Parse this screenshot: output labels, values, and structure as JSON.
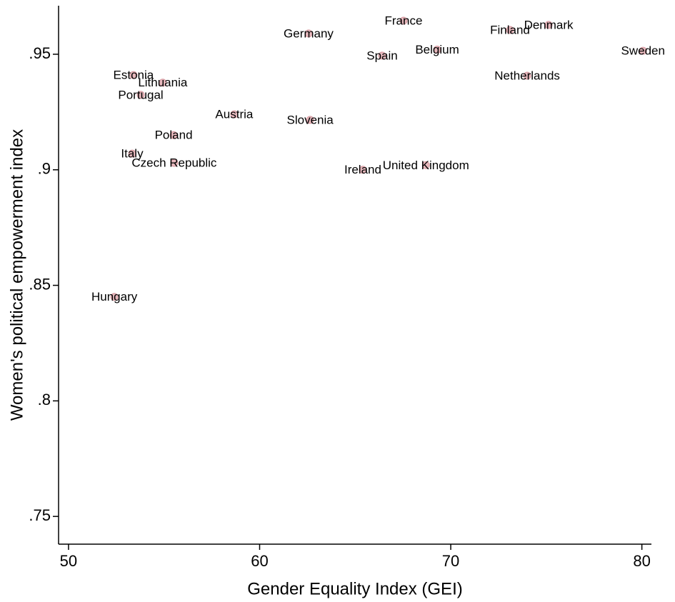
{
  "chart_data": {
    "type": "scatter",
    "x_label": "Gender Equality Index (GEI)",
    "y_label": "Women's political empowerment index",
    "xlim": [
      49.48,
      80.5
    ],
    "ylim": [
      0.738,
      0.971
    ],
    "xticks": [
      50,
      60,
      70,
      80
    ],
    "yticks": [
      {
        "value": 0.75,
        "label": ".75"
      },
      {
        "value": 0.8,
        "label": ".8"
      },
      {
        "value": 0.85,
        "label": ".85"
      },
      {
        "value": 0.9,
        "label": ".9"
      },
      {
        "value": 0.95,
        "label": ".95"
      }
    ],
    "color": "#e6b8bd",
    "labels": [
      "France",
      "Germany",
      "Denmark",
      "Finland",
      "Sweden",
      "Belgium",
      "Spain",
      "Netherlands",
      "Estonia",
      "Lithuania",
      "Portugal",
      "Austria",
      "Slovenia",
      "Poland",
      "Italy",
      "Czech Republic",
      "Ireland",
      "United Kingdom",
      "Hungary"
    ],
    "x": [
      67.53,
      62.56,
      75.12,
      73.1,
      80.06,
      69.29,
      66.41,
      74.0,
      53.4,
      54.93,
      53.78,
      58.67,
      62.64,
      55.5,
      53.33,
      55.53,
      65.4,
      68.7,
      52.4
    ],
    "y": [
      0.9645,
      0.959,
      0.9627,
      0.9605,
      0.9515,
      0.952,
      0.9494,
      0.9407,
      0.941,
      0.9377,
      0.9324,
      0.924,
      0.9216,
      0.915,
      0.907,
      0.903,
      0.9,
      0.902,
      0.845
    ]
  }
}
